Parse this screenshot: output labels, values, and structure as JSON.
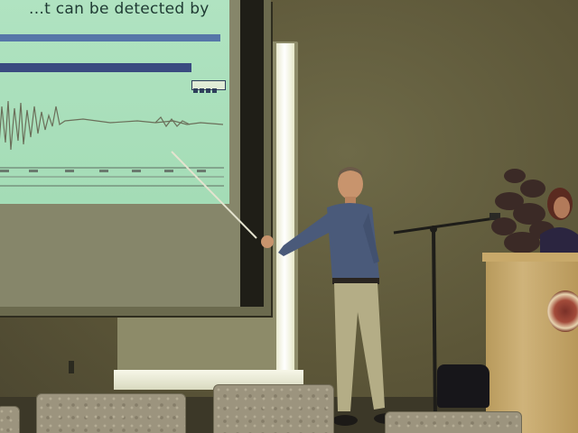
{
  "slide": {
    "heading_fragment": "...t can be detected by"
  },
  "icons": {
    "waveform": "seismic-waveform",
    "podium_emblem": "university-seal"
  }
}
